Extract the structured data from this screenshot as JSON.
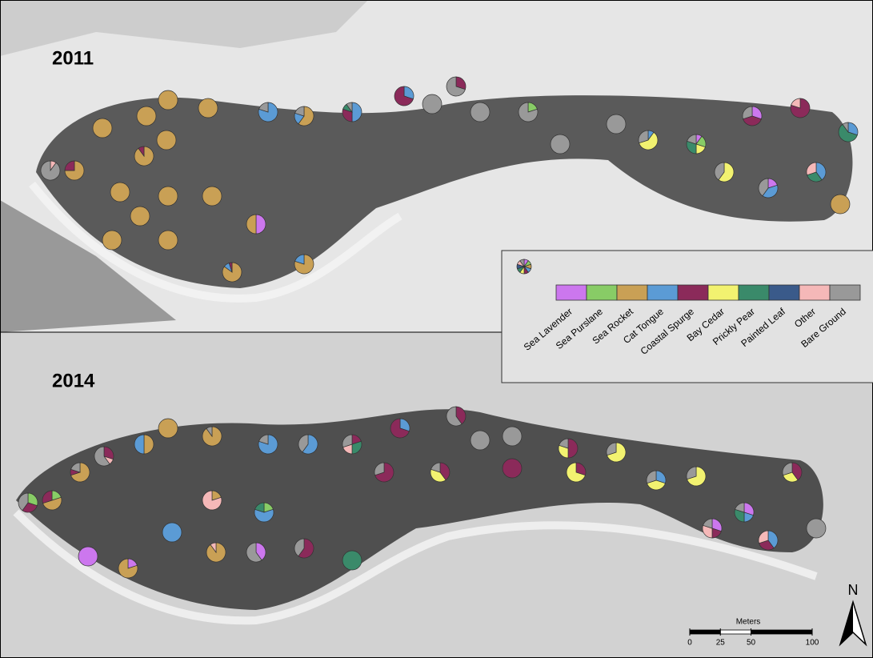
{
  "panels": [
    {
      "year": "2011",
      "pies": [
        [
          0,
          0,
          0,
          0,
          0,
          0,
          0,
          0,
          10,
          90
        ],
        [
          0,
          0,
          75,
          0,
          25,
          0,
          0,
          0,
          0,
          0
        ],
        [
          0,
          0,
          100,
          0,
          0,
          0,
          0,
          0,
          0,
          0
        ],
        [
          0,
          0,
          100,
          0,
          0,
          0,
          0,
          0,
          0,
          0
        ],
        [
          0,
          0,
          100,
          0,
          0,
          0,
          0,
          0,
          0,
          0
        ],
        [
          0,
          0,
          100,
          0,
          0,
          0,
          0,
          0,
          0,
          0
        ],
        [
          0,
          0,
          100,
          0,
          0,
          0,
          0,
          0,
          0,
          0
        ],
        [
          0,
          0,
          90,
          0,
          10,
          0,
          0,
          0,
          0,
          0
        ],
        [
          0,
          0,
          100,
          0,
          0,
          0,
          0,
          0,
          0,
          0
        ],
        [
          0,
          0,
          100,
          0,
          0,
          0,
          0,
          0,
          0,
          0
        ],
        [
          0,
          0,
          100,
          0,
          0,
          0,
          0,
          0,
          0,
          0
        ],
        [
          50,
          0,
          50,
          0,
          0,
          0,
          0,
          0,
          0,
          0
        ],
        [
          0,
          0,
          100,
          0,
          0,
          0,
          0,
          0,
          0,
          0
        ],
        [
          0,
          0,
          100,
          0,
          0,
          0,
          0,
          0,
          0,
          0
        ],
        [
          0,
          0,
          100,
          0,
          0,
          0,
          0,
          0,
          0,
          0
        ],
        [
          0,
          0,
          85,
          10,
          5,
          0,
          0,
          0,
          0,
          0
        ],
        [
          0,
          0,
          80,
          20,
          0,
          0,
          0,
          0,
          0,
          0
        ],
        [
          0,
          0,
          0,
          80,
          0,
          0,
          0,
          0,
          0,
          20
        ],
        [
          0,
          0,
          60,
          20,
          0,
          0,
          0,
          0,
          0,
          20
        ],
        [
          0,
          0,
          0,
          50,
          30,
          0,
          10,
          0,
          0,
          10
        ],
        [
          0,
          0,
          0,
          30,
          70,
          0,
          0,
          0,
          0,
          0
        ],
        [
          0,
          0,
          0,
          0,
          30,
          0,
          0,
          0,
          0,
          70
        ],
        [
          0,
          0,
          0,
          0,
          0,
          0,
          0,
          0,
          0,
          100
        ],
        [
          0,
          0,
          0,
          0,
          0,
          0,
          0,
          0,
          0,
          100
        ],
        [
          0,
          20,
          0,
          0,
          0,
          0,
          0,
          0,
          0,
          80
        ],
        [
          0,
          0,
          0,
          0,
          0,
          0,
          0,
          0,
          0,
          100
        ],
        [
          0,
          0,
          0,
          0,
          0,
          0,
          0,
          0,
          0,
          100
        ],
        [
          0,
          0,
          0,
          10,
          0,
          60,
          0,
          0,
          0,
          30
        ],
        [
          10,
          20,
          0,
          0,
          0,
          20,
          30,
          0,
          0,
          20
        ],
        [
          30,
          0,
          0,
          0,
          40,
          0,
          0,
          0,
          0,
          30
        ],
        [
          0,
          0,
          0,
          0,
          80,
          0,
          0,
          0,
          20,
          0
        ],
        [
          0,
          0,
          0,
          30,
          0,
          0,
          60,
          0,
          0,
          10
        ],
        [
          0,
          0,
          0,
          0,
          0,
          60,
          0,
          0,
          0,
          40
        ],
        [
          20,
          0,
          0,
          40,
          0,
          0,
          0,
          0,
          0,
          40
        ],
        [
          0,
          0,
          0,
          40,
          0,
          0,
          30,
          0,
          30,
          0
        ],
        [
          0,
          0,
          100,
          0,
          0,
          0,
          0,
          0,
          0,
          0
        ]
      ]
    },
    {
      "year": "2014",
      "pies": [
        [
          0,
          30,
          0,
          0,
          30,
          0,
          0,
          0,
          0,
          40
        ],
        [
          0,
          20,
          50,
          0,
          30,
          0,
          0,
          0,
          0,
          0
        ],
        [
          0,
          0,
          70,
          0,
          10,
          0,
          0,
          0,
          0,
          20
        ],
        [
          0,
          0,
          0,
          0,
          30,
          0,
          0,
          0,
          10,
          60
        ],
        [
          0,
          0,
          50,
          50,
          0,
          0,
          0,
          0,
          0,
          0
        ],
        [
          0,
          0,
          100,
          0,
          0,
          0,
          0,
          0,
          0,
          0
        ],
        [
          0,
          0,
          90,
          0,
          0,
          0,
          0,
          0,
          0,
          10
        ],
        [
          0,
          0,
          0,
          80,
          0,
          0,
          0,
          0,
          0,
          20
        ],
        [
          0,
          0,
          0,
          60,
          0,
          0,
          0,
          0,
          0,
          40
        ],
        [
          0,
          0,
          0,
          0,
          20,
          0,
          30,
          0,
          20,
          30
        ],
        [
          0,
          0,
          0,
          30,
          70,
          0,
          0,
          0,
          0,
          0
        ],
        [
          0,
          0,
          0,
          0,
          40,
          0,
          0,
          0,
          0,
          60
        ],
        [
          0,
          0,
          0,
          0,
          0,
          0,
          0,
          0,
          0,
          100
        ],
        [
          0,
          0,
          0,
          0,
          0,
          0,
          0,
          0,
          0,
          100
        ],
        [
          0,
          0,
          0,
          0,
          50,
          30,
          0,
          0,
          0,
          20
        ],
        [
          0,
          0,
          0,
          0,
          0,
          70,
          0,
          0,
          0,
          30
        ],
        [
          100,
          0,
          0,
          0,
          0,
          0,
          0,
          0,
          0,
          0
        ],
        [
          20,
          0,
          80,
          0,
          0,
          0,
          0,
          0,
          0,
          0
        ],
        [
          0,
          0,
          0,
          100,
          0,
          0,
          0,
          0,
          0,
          0
        ],
        [
          0,
          0,
          90,
          0,
          0,
          0,
          0,
          0,
          10,
          0
        ],
        [
          40,
          0,
          0,
          0,
          0,
          0,
          0,
          0,
          0,
          60
        ],
        [
          0,
          0,
          0,
          0,
          60,
          0,
          0,
          0,
          0,
          40
        ],
        [
          0,
          0,
          0,
          0,
          0,
          0,
          100,
          0,
          0,
          0
        ],
        [
          0,
          0,
          20,
          0,
          0,
          0,
          0,
          0,
          80,
          0
        ],
        [
          0,
          20,
          0,
          60,
          0,
          0,
          20,
          0,
          0,
          0
        ],
        [
          0,
          0,
          0,
          0,
          70,
          0,
          0,
          0,
          0,
          30
        ],
        [
          0,
          0,
          0,
          0,
          40,
          40,
          0,
          0,
          0,
          20
        ],
        [
          0,
          0,
          0,
          0,
          100,
          0,
          0,
          0,
          0,
          0
        ],
        [
          0,
          0,
          0,
          0,
          30,
          70,
          0,
          0,
          0,
          0
        ],
        [
          0,
          0,
          0,
          30,
          0,
          40,
          0,
          0,
          0,
          30
        ],
        [
          0,
          0,
          0,
          0,
          0,
          70,
          0,
          0,
          0,
          30
        ],
        [
          30,
          0,
          0,
          20,
          0,
          0,
          30,
          0,
          0,
          20
        ],
        [
          0,
          0,
          0,
          0,
          40,
          30,
          0,
          0,
          0,
          30
        ],
        [
          0,
          0,
          0,
          0,
          0,
          0,
          0,
          0,
          0,
          100
        ],
        [
          0,
          0,
          0,
          40,
          30,
          0,
          0,
          0,
          30,
          0
        ],
        [
          30,
          0,
          0,
          0,
          20,
          0,
          0,
          0,
          30,
          20
        ]
      ]
    }
  ],
  "legend": {
    "categories": [
      {
        "name": "Sea Lavender",
        "color": "#cc77ee"
      },
      {
        "name": "Sea Purslane",
        "color": "#88cc66"
      },
      {
        "name": "Sea Rocket",
        "color": "#c9a055"
      },
      {
        "name": "Cat Tongue",
        "color": "#5b9bd5"
      },
      {
        "name": "Coastal Spurge",
        "color": "#8b2a5a"
      },
      {
        "name": "Bay Cedar",
        "color": "#f2f270"
      },
      {
        "name": "Prickly Pear",
        "color": "#3a8a6a"
      },
      {
        "name": "Painted Leaf",
        "color": "#3a5a8a"
      },
      {
        "name": "Other",
        "color": "#f5b8b8"
      },
      {
        "name": "Bare Ground",
        "color": "#999999"
      }
    ]
  },
  "scale_bar": {
    "unit": "Meters",
    "ticks": [
      0,
      25,
      50,
      100
    ]
  },
  "north": "N"
}
